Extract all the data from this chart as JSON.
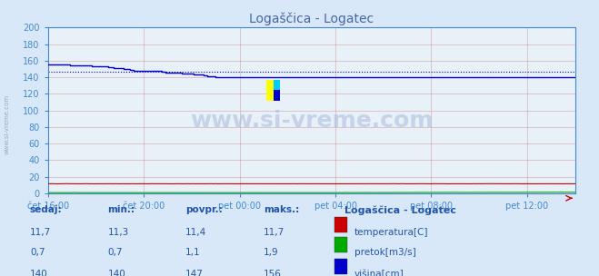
{
  "title": "Logaščica - Logatec",
  "bg_color": "#d8e8f8",
  "plot_bg_color": "#e8f0f8",
  "title_color": "#4466aa",
  "axis_color": "#4488cc",
  "tick_color": "#4488cc",
  "grid_color_major": "#cc8888",
  "grid_color_minor": "#ddaaaa",
  "watermark": "www.si-vreme.com",
  "x_labels": [
    "čet 16:00",
    "čet 20:00",
    "pet 00:00",
    "pet 04:00",
    "pet 08:00",
    "pet 12:00"
  ],
  "x_ticks": [
    0,
    48,
    96,
    144,
    192,
    240
  ],
  "total_points": 265,
  "ylim": [
    0,
    200
  ],
  "yticks": [
    0,
    20,
    40,
    60,
    80,
    100,
    120,
    140,
    160,
    180,
    200
  ],
  "visina_avg": 147,
  "visina_max": 156,
  "visina_min": 140,
  "temp_avg": 11.4,
  "temp_min": 11.3,
  "temp_max": 11.7,
  "pretok_avg": 1.1,
  "pretok_min": 0.7,
  "pretok_max": 1.9,
  "sidebar_text": "www.si-vreme.com",
  "legend_title": "Logaščica - Logatec",
  "legend_items": [
    {
      "label": "temperatura[C]",
      "color": "#cc0000"
    },
    {
      "label": "pretok[m3/s]",
      "color": "#00aa00"
    },
    {
      "label": "višina[cm]",
      "color": "#0000cc"
    }
  ],
  "table_headers": [
    "sedaj:",
    "min.:",
    "povpr.:",
    "maks.:"
  ],
  "table_rows": [
    [
      "11,7",
      "11,3",
      "11,4",
      "11,7"
    ],
    [
      "0,7",
      "0,7",
      "1,1",
      "1,9"
    ],
    [
      "140",
      "140",
      "147",
      "156"
    ]
  ]
}
